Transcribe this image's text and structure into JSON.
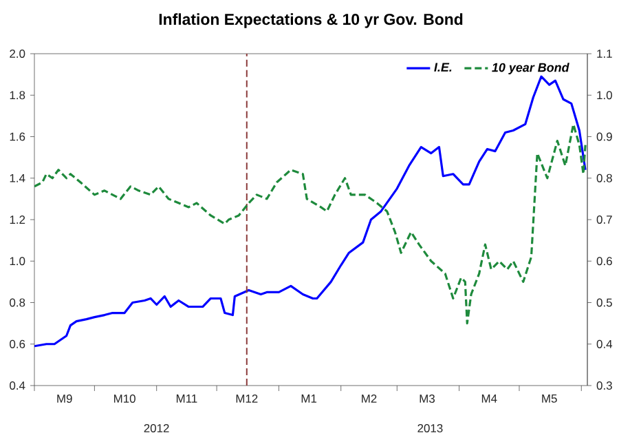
{
  "chart_data": {
    "type": "line",
    "title": "Inflation Expectations & 10 yr Gov. Bond",
    "xlim": [
      "2012-09-01",
      "2013-06-04"
    ],
    "xticks": [
      {
        "value": "2012-09-01",
        "label": null
      },
      {
        "value": "2012-10-01",
        "label": null
      },
      {
        "value": "2012-11-01",
        "label": null
      },
      {
        "value": "2012-12-01",
        "label": null
      },
      {
        "value": "2013-01-01",
        "label": null
      },
      {
        "value": "2013-02-01",
        "label": null
      },
      {
        "value": "2013-03-01",
        "label": null
      },
      {
        "value": "2013-04-01",
        "label": null
      },
      {
        "value": "2013-05-01",
        "label": null
      },
      {
        "value": "2013-06-01",
        "label": null
      },
      {
        "value": "2012-09-16",
        "label": "M9"
      },
      {
        "value": "2012-10-16",
        "label": "M10"
      },
      {
        "value": "2012-11-16",
        "label": "M11"
      },
      {
        "value": "2012-12-16",
        "label": "M12"
      },
      {
        "value": "2013-01-16",
        "label": "M1"
      },
      {
        "value": "2013-02-15",
        "label": "M2"
      },
      {
        "value": "2013-03-16",
        "label": "M3"
      },
      {
        "value": "2013-04-16",
        "label": "M4"
      },
      {
        "value": "2013-05-16",
        "label": "M5"
      }
    ],
    "ylim": [
      0.4,
      2.0
    ],
    "yticks": [
      0.4,
      0.6,
      0.8,
      {
        "value": 1,
        "label": "1.0"
      },
      1.2,
      1.4,
      1.6,
      1.8,
      {
        "value": 2,
        "label": "2.0"
      }
    ],
    "y2lim": [
      0.3,
      1.1
    ],
    "y2ticks": [
      0.3,
      0.4,
      0.5,
      0.6,
      0.7,
      0.8,
      0.9,
      {
        "value": 1,
        "label": "1.0"
      },
      1.1
    ],
    "annotations": [
      "2012",
      "2013"
    ],
    "legend": "top right",
    "marker": "none",
    "grid": false,
    "ref_lines": [
      {
        "axis": "x",
        "value": "2012-12-16",
        "color": "#8b3a3a",
        "line_style": "dashed"
      }
    ],
    "series": [
      {
        "name": "I.E.",
        "color": "#0000ff",
        "line_style": "solid",
        "x": [
          "2012-09-01",
          "2012-09-07",
          "2012-09-11",
          "2012-09-14",
          "2012-09-17",
          "2012-09-19",
          "2012-09-22",
          "2012-09-27",
          "2012-10-01",
          "2012-10-06",
          "2012-10-10",
          "2012-10-16",
          "2012-10-20",
          "2012-10-26",
          "2012-10-29",
          "2012-11-01",
          "2012-11-05",
          "2012-11-08",
          "2012-11-12",
          "2012-11-17",
          "2012-11-24",
          "2012-11-28",
          "2012-12-03",
          "2012-12-05",
          "2012-12-09",
          "2012-12-10",
          "2012-12-17",
          "2012-12-23",
          "2012-12-26",
          "2013-01-01",
          "2013-01-07",
          "2013-01-13",
          "2013-01-18",
          "2013-01-20",
          "2013-01-27",
          "2013-02-01",
          "2013-02-05",
          "2013-02-12",
          "2013-02-16",
          "2013-02-21",
          "2013-03-01",
          "2013-03-07",
          "2013-03-13",
          "2013-03-18",
          "2013-03-22",
          "2013-03-24",
          "2013-03-29",
          "2013-04-03",
          "2013-04-06",
          "2013-04-11",
          "2013-04-15",
          "2013-04-19",
          "2013-04-24",
          "2013-04-28",
          "2013-05-04",
          "2013-05-08",
          "2013-05-12",
          "2013-05-16",
          "2013-05-19",
          "2013-05-23",
          "2013-05-27",
          "2013-05-31",
          "2013-06-03"
        ],
        "values": [
          0.59,
          0.6,
          0.6,
          0.62,
          0.64,
          0.69,
          0.71,
          0.72,
          0.73,
          0.74,
          0.75,
          0.75,
          0.8,
          0.81,
          0.82,
          0.79,
          0.83,
          0.78,
          0.81,
          0.78,
          0.78,
          0.82,
          0.82,
          0.75,
          0.74,
          0.83,
          0.86,
          0.84,
          0.85,
          0.85,
          0.88,
          0.84,
          0.82,
          0.82,
          0.9,
          0.98,
          1.04,
          1.09,
          1.2,
          1.24,
          1.35,
          1.46,
          1.55,
          1.52,
          1.55,
          1.41,
          1.42,
          1.37,
          1.37,
          1.48,
          1.54,
          1.53,
          1.62,
          1.63,
          1.66,
          1.79,
          1.89,
          1.85,
          1.87,
          1.78,
          1.76,
          1.63,
          1.44
        ]
      },
      {
        "name": "10 year Bond",
        "color": "#1e8a3c",
        "line_style": "dashed",
        "axis": "y2",
        "x": [
          "2012-09-01",
          "2012-09-05",
          "2012-09-07",
          "2012-09-10",
          "2012-09-13",
          "2012-09-17",
          "2012-09-19",
          "2012-09-24",
          "2012-10-01",
          "2012-10-06",
          "2012-10-10",
          "2012-10-14",
          "2012-10-19",
          "2012-10-23",
          "2012-10-29",
          "2012-11-02",
          "2012-11-07",
          "2012-11-12",
          "2012-11-17",
          "2012-11-21",
          "2012-11-28",
          "2012-12-05",
          "2012-12-07",
          "2012-12-12",
          "2012-12-17",
          "2012-12-21",
          "2012-12-26",
          "2012-12-31",
          "2013-01-07",
          "2013-01-13",
          "2013-01-15",
          "2013-01-22",
          "2013-01-25",
          "2013-01-29",
          "2013-02-03",
          "2013-02-06",
          "2013-02-13",
          "2013-02-19",
          "2013-02-24",
          "2013-02-28",
          "2013-03-03",
          "2013-03-08",
          "2013-03-12",
          "2013-03-18",
          "2013-03-25",
          "2013-03-29",
          "2013-04-02",
          "2013-04-04",
          "2013-04-05",
          "2013-04-07",
          "2013-04-11",
          "2013-04-14",
          "2013-04-17",
          "2013-04-21",
          "2013-04-25",
          "2013-04-28",
          "2013-05-03",
          "2013-05-07",
          "2013-05-10",
          "2013-05-15",
          "2013-05-20",
          "2013-05-24",
          "2013-05-28",
          "2013-05-31",
          "2013-06-02",
          "2013-06-03"
        ],
        "values": [
          0.78,
          0.79,
          0.81,
          0.8,
          0.82,
          0.8,
          0.81,
          0.79,
          0.76,
          0.77,
          0.76,
          0.75,
          0.78,
          0.77,
          0.76,
          0.78,
          0.75,
          0.74,
          0.73,
          0.74,
          0.71,
          0.69,
          0.7,
          0.71,
          0.74,
          0.76,
          0.75,
          0.79,
          0.82,
          0.81,
          0.75,
          0.73,
          0.72,
          0.76,
          0.8,
          0.76,
          0.76,
          0.74,
          0.72,
          0.67,
          0.62,
          0.67,
          0.64,
          0.6,
          0.57,
          0.51,
          0.56,
          0.55,
          0.45,
          0.52,
          0.57,
          0.64,
          0.58,
          0.6,
          0.58,
          0.6,
          0.55,
          0.61,
          0.86,
          0.8,
          0.89,
          0.83,
          0.93,
          0.88,
          0.81,
          0.88
        ]
      }
    ]
  }
}
